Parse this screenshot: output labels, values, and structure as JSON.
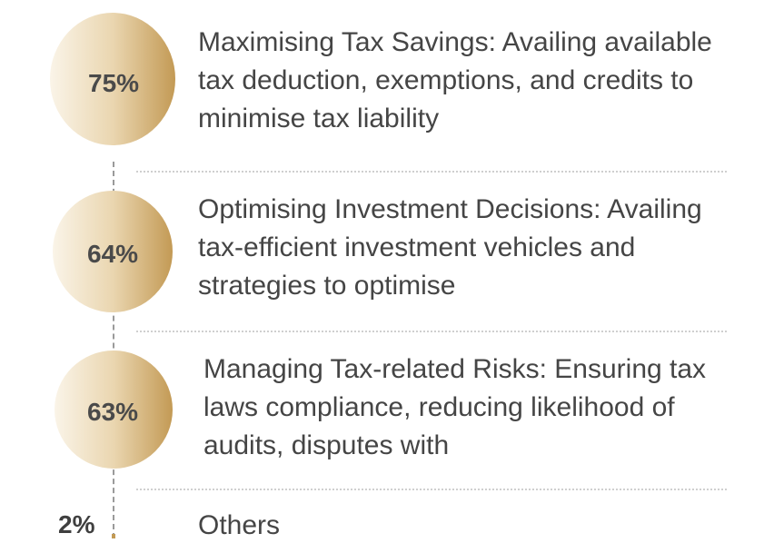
{
  "chart_data": {
    "type": "table",
    "items": [
      {
        "percent": "75%",
        "value": 75,
        "label": "Maximising Tax Savings: Availing available tax deduction, exemptions, and credits to minimise tax liability"
      },
      {
        "percent": "64%",
        "value": 64,
        "label": "Optimising Investment Decisions: Availing tax-efficient investment vehicles and strategies to optimise"
      },
      {
        "percent": "63%",
        "value": 63,
        "label": "Managing Tax-related Risks: Ensuring tax laws compliance, reducing likelihood of audits, disputes with"
      },
      {
        "percent": "2%",
        "value": 2,
        "label": "Others"
      }
    ]
  },
  "colors": {
    "accent_dark": "#c39a55",
    "accent_light": "#faf4e8",
    "text": "#454545"
  }
}
